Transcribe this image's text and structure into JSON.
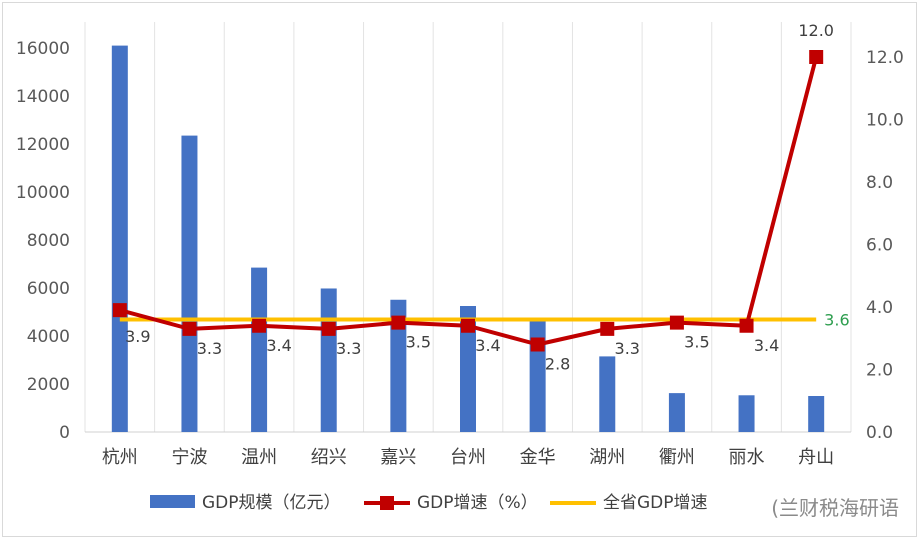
{
  "chart_data": {
    "type": "bar-line-combo",
    "categories": [
      "杭州",
      "宁波",
      "温州",
      "绍兴",
      "嘉兴",
      "台州",
      "金华",
      "湖州",
      "衢州",
      "丽水",
      "舟山"
    ],
    "series": [
      {
        "name": "GDP规模（亿元）",
        "type": "bar",
        "axis": "left",
        "color": "#4472C4",
        "values": [
          16100,
          12350,
          6850,
          5980,
          5510,
          5250,
          4650,
          3150,
          1620,
          1530,
          1500
        ]
      },
      {
        "name": "GDP增速（%）",
        "type": "line",
        "axis": "right",
        "color": "#C00000",
        "values": [
          3.9,
          3.3,
          3.4,
          3.3,
          3.5,
          3.4,
          2.8,
          3.3,
          3.5,
          3.4,
          12.0
        ],
        "labels": [
          "3.9",
          "3.3",
          "3.4",
          "3.3",
          "3.5",
          "3.4",
          "2.8",
          "3.3",
          "3.5",
          "3.4",
          "12.0"
        ]
      },
      {
        "name": "全省GDP增速",
        "type": "line",
        "axis": "right",
        "color": "#FFC000",
        "value": 3.6,
        "label": "3.6",
        "label_color": "#2E9E4F"
      }
    ],
    "y_left": {
      "min": 0,
      "max": 16000,
      "ticks": [
        "0",
        "2000",
        "4000",
        "6000",
        "8000",
        "10000",
        "12000",
        "14000",
        "16000"
      ]
    },
    "y_right": {
      "min": 0,
      "max": 13.0,
      "ticks": [
        "0.0",
        "2.0",
        "4.0",
        "6.0",
        "8.0",
        "10.0",
        "12.0"
      ]
    },
    "grid": "vertical",
    "legend": "bottom"
  },
  "watermark": "兰财税海研语"
}
